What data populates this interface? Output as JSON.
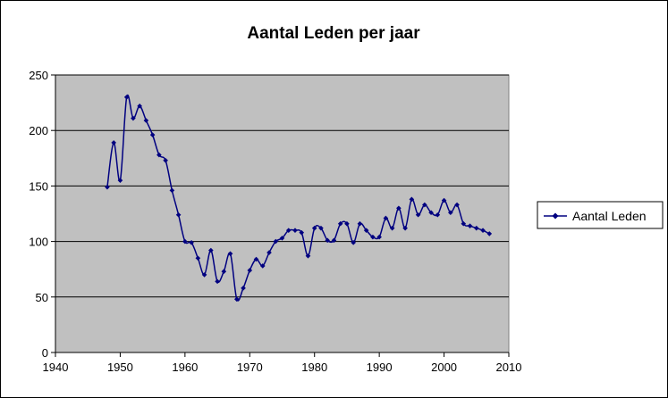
{
  "chart_data": {
    "type": "line",
    "title": "Aantal Leden per jaar",
    "xlabel": "",
    "ylabel": "",
    "xlim": [
      1940,
      2010
    ],
    "ylim": [
      0,
      250
    ],
    "x_ticks": [
      1940,
      1950,
      1960,
      1970,
      1980,
      1990,
      2000,
      2010
    ],
    "y_ticks": [
      0,
      50,
      100,
      150,
      200,
      250
    ],
    "grid": "horizontal",
    "plot_background": "#c0c0c0",
    "legend_position": "right",
    "series": [
      {
        "name": "Aantal Leden",
        "color": "#000080",
        "marker": "diamond",
        "x": [
          1948,
          1949,
          1950,
          1951,
          1952,
          1953,
          1954,
          1955,
          1956,
          1957,
          1958,
          1959,
          1960,
          1961,
          1962,
          1963,
          1964,
          1965,
          1966,
          1967,
          1968,
          1969,
          1970,
          1971,
          1972,
          1973,
          1974,
          1975,
          1976,
          1977,
          1978,
          1979,
          1980,
          1981,
          1982,
          1983,
          1984,
          1985,
          1986,
          1987,
          1988,
          1989,
          1990,
          1991,
          1992,
          1993,
          1994,
          1995,
          1996,
          1997,
          1998,
          1999,
          2000,
          2001,
          2002,
          2003,
          2004,
          2005,
          2006,
          2007
        ],
        "y": [
          149,
          189,
          155,
          230,
          211,
          222,
          209,
          196,
          178,
          173,
          146,
          124,
          100,
          99,
          85,
          70,
          92,
          64,
          73,
          89,
          48,
          58,
          74,
          84,
          78,
          90,
          100,
          103,
          110,
          110,
          108,
          87,
          112,
          112,
          101,
          101,
          116,
          116,
          99,
          116,
          110,
          104,
          104,
          121,
          112,
          130,
          112,
          138,
          124,
          133,
          126,
          124,
          137,
          126,
          133,
          116,
          114,
          112,
          110,
          107
        ]
      }
    ]
  }
}
